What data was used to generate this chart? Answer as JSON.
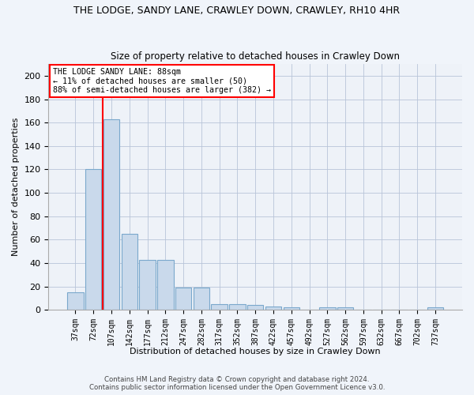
{
  "title": "THE LODGE, SANDY LANE, CRAWLEY DOWN, CRAWLEY, RH10 4HR",
  "subtitle": "Size of property relative to detached houses in Crawley Down",
  "xlabel": "Distribution of detached houses by size in Crawley Down",
  "ylabel": "Number of detached properties",
  "categories": [
    "37sqm",
    "72sqm",
    "107sqm",
    "142sqm",
    "177sqm",
    "212sqm",
    "247sqm",
    "282sqm",
    "317sqm",
    "352sqm",
    "387sqm",
    "422sqm",
    "457sqm",
    "492sqm",
    "527sqm",
    "562sqm",
    "597sqm",
    "632sqm",
    "667sqm",
    "702sqm",
    "737sqm"
  ],
  "values": [
    15,
    120,
    163,
    65,
    43,
    43,
    19,
    19,
    5,
    5,
    4,
    3,
    2,
    0,
    2,
    2,
    0,
    0,
    0,
    0,
    2
  ],
  "bar_color": "#c9d9eb",
  "bar_edge_color": "#7aa8cc",
  "red_line_x": 1.5,
  "annotation_title": "THE LODGE SANDY LANE: 88sqm",
  "annotation_line1": "← 11% of detached houses are smaller (50)",
  "annotation_line2": "88% of semi-detached houses are larger (382) →",
  "ylim": [
    0,
    210
  ],
  "yticks": [
    0,
    20,
    40,
    60,
    80,
    100,
    120,
    140,
    160,
    180,
    200
  ],
  "footer1": "Contains HM Land Registry data © Crown copyright and database right 2024.",
  "footer2": "Contains public sector information licensed under the Open Government Licence v3.0.",
  "bg_color": "#f0f4fa",
  "plot_bg_color": "#eef2f8"
}
